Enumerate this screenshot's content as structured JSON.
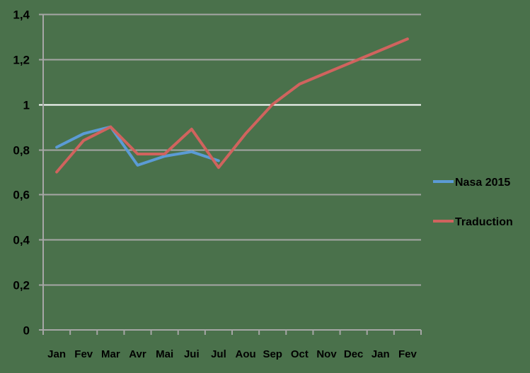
{
  "chart_data": {
    "type": "line",
    "title": "",
    "xlabel": "",
    "ylabel": "",
    "categories": [
      "Jan",
      "Fev",
      "Mar",
      "Avr",
      "Mai",
      "Jui",
      "Jul",
      "Aou",
      "Sep",
      "Oct",
      "Nov",
      "Dec",
      "Jan",
      "Fev"
    ],
    "y_ticks": [
      "0",
      "0,2",
      "0,4",
      "0,6",
      "0,8",
      "1",
      "1,2",
      "1,4"
    ],
    "ylim": [
      0,
      1.4
    ],
    "grid": true,
    "legend_position": "right",
    "series": [
      {
        "name": "Nasa 2015",
        "color": "#5b9bd5",
        "values": [
          0.81,
          0.87,
          0.9,
          0.73,
          0.77,
          0.79,
          0.75,
          null,
          null,
          null,
          null,
          null,
          null,
          null
        ]
      },
      {
        "name": "Traduction",
        "color": "#d0635e",
        "values": [
          0.7,
          0.84,
          0.9,
          0.78,
          0.78,
          0.89,
          0.72,
          0.87,
          1.0,
          1.09,
          1.14,
          1.19,
          1.24,
          1.29
        ]
      }
    ]
  },
  "colors": {
    "background": "#4a714b",
    "gridline": "#a6a6a6",
    "gridline_one": "#ffffff"
  }
}
